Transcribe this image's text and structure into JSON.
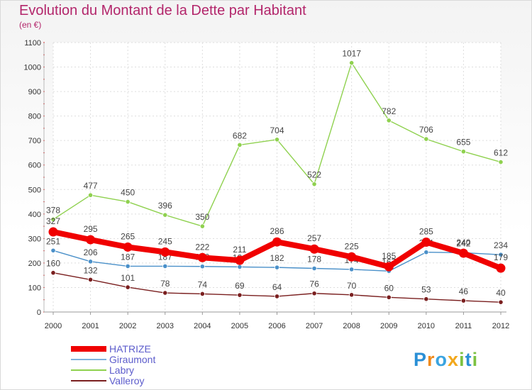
{
  "chart_data": {
    "type": "line",
    "title": "Evolution du Montant de la Dette par Habitant",
    "subtitle": "(en €)",
    "categories": [
      "2000",
      "2001",
      "2002",
      "2003",
      "2004",
      "2005",
      "2006",
      "2007",
      "2008",
      "2009",
      "2010",
      "2011",
      "2012"
    ],
    "ylim": [
      0,
      1100
    ],
    "yticks": [
      0,
      100,
      200,
      300,
      400,
      500,
      600,
      700,
      800,
      900,
      1000,
      1100
    ],
    "grid": true,
    "legend_position": "bottom-left",
    "series": [
      {
        "name": "Labry",
        "color": "#8fd14f",
        "values": [
          378,
          477,
          450,
          396,
          350,
          682,
          704,
          522,
          1017,
          782,
          706,
          655,
          612
        ]
      },
      {
        "name": "Giraumont",
        "color": "#4a90c9",
        "values": [
          251,
          206,
          187,
          187,
          186,
          184,
          182,
          178,
          174,
          167,
          244,
          242,
          234
        ]
      },
      {
        "name": "Valleroy",
        "color": "#7a1f1f",
        "values": [
          160,
          132,
          101,
          78,
          74,
          69,
          64,
          76,
          70,
          60,
          53,
          46,
          40
        ]
      },
      {
        "name": "HATRIZE",
        "color": "#f00000",
        "values": [
          327,
          295,
          265,
          245,
          222,
          211,
          286,
          257,
          225,
          185,
          285,
          240,
          179
        ]
      }
    ]
  },
  "legend": {
    "items": [
      {
        "label": "HATRIZE",
        "color": "#f00000"
      },
      {
        "label": "Giraumont",
        "color": "#7fb2dc"
      },
      {
        "label": "Labry",
        "color": "#8fd14f"
      },
      {
        "label": "Valleroy",
        "color": "#7a1f1f"
      }
    ]
  },
  "brand": {
    "text": "Proxiti",
    "letters": [
      {
        "ch": "P",
        "color": "#2a8fd6"
      },
      {
        "ch": "r",
        "color": "#f08a1c"
      },
      {
        "ch": "o",
        "color": "#3aa4e0"
      },
      {
        "ch": "x",
        "color": "#f2a81d"
      },
      {
        "ch": "i",
        "color": "#7cc242"
      },
      {
        "ch": "t",
        "color": "#2a8fd6"
      },
      {
        "ch": "i",
        "color": "#7cc242"
      }
    ]
  }
}
